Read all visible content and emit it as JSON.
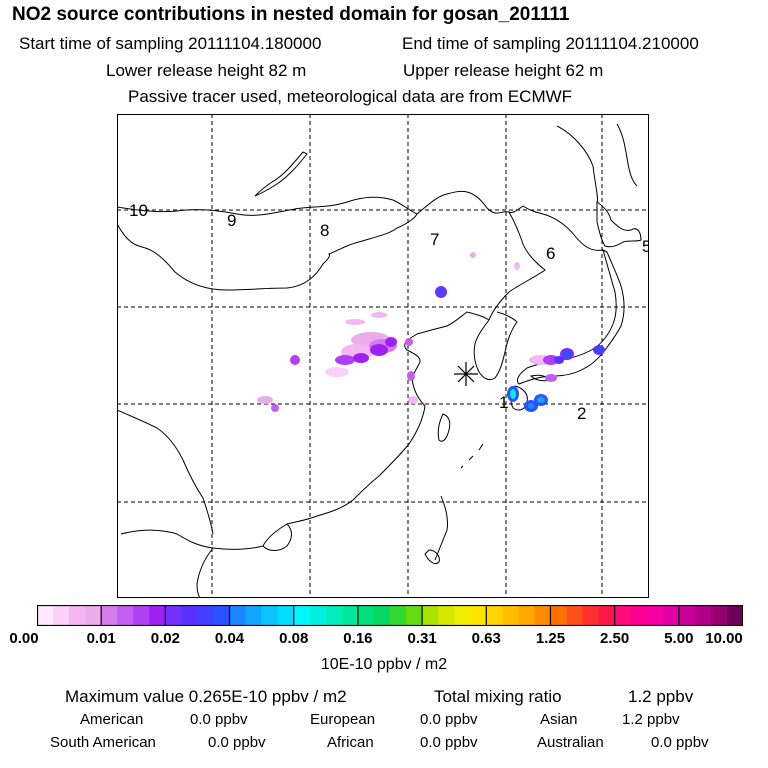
{
  "header": {
    "title": "NO2 source contributions in nested domain for gosan_201111",
    "start_time": "Start time of sampling 20111104.180000",
    "end_time": "End time of sampling 20111104.210000",
    "lower_release": "Lower release height   82 m",
    "upper_release": "Upper release height   62 m",
    "note": "Passive tracer used, meteorological data are from ECMWF"
  },
  "map": {
    "zone_labels": [
      "10",
      "9",
      "8",
      "7",
      "6",
      "5",
      "1",
      "2"
    ],
    "station_marker": "gosan"
  },
  "colorbar": {
    "colors": [
      "#fde8fd",
      "#f9d0f9",
      "#f3b6f3",
      "#ecacec",
      "#d67cea",
      "#c35ff0",
      "#b040f3",
      "#9d20f5",
      "#7630ff",
      "#5a30ff",
      "#4040ff",
      "#2a52ff",
      "#1d86ff",
      "#12a6ff",
      "#0ac4ff",
      "#06dcff",
      "#00f6ff",
      "#00f0e0",
      "#00ecbe",
      "#00e89a",
      "#00e07a",
      "#04d860",
      "#30d830",
      "#66dc10",
      "#a8e400",
      "#d4e800",
      "#f2ec00",
      "#ffe600",
      "#ffd400",
      "#ffbe00",
      "#ffa800",
      "#ff8c00",
      "#ff7000",
      "#ff5018",
      "#ff3030",
      "#ff1848",
      "#ff0c78",
      "#ff0096",
      "#f400a6",
      "#e000a8",
      "#c80098",
      "#b0008a",
      "#980070",
      "#6c0058"
    ],
    "ticks": [
      "0.00",
      "0.01",
      "0.02",
      "0.04",
      "0.08",
      "0.16",
      "0.31",
      "0.63",
      "1.25",
      "2.50",
      "5.00",
      "10.00"
    ],
    "unit": "10E-10 ppbv / m2"
  },
  "summary": {
    "max_label": "Maximum value  0.265E-10 ppbv / m2",
    "total_label": "Total mixing ratio",
    "total_value": "1.2 ppbv"
  },
  "regions": [
    {
      "name": "American",
      "value": "0.0 ppbv"
    },
    {
      "name": "European",
      "value": "0.0 ppbv"
    },
    {
      "name": "Asian",
      "value": "1.2 ppbv"
    },
    {
      "name": "South American",
      "value": "0.0 ppbv"
    },
    {
      "name": "African",
      "value": "0.0 ppbv"
    },
    {
      "name": "Australian",
      "value": "0.0 ppbv"
    }
  ]
}
